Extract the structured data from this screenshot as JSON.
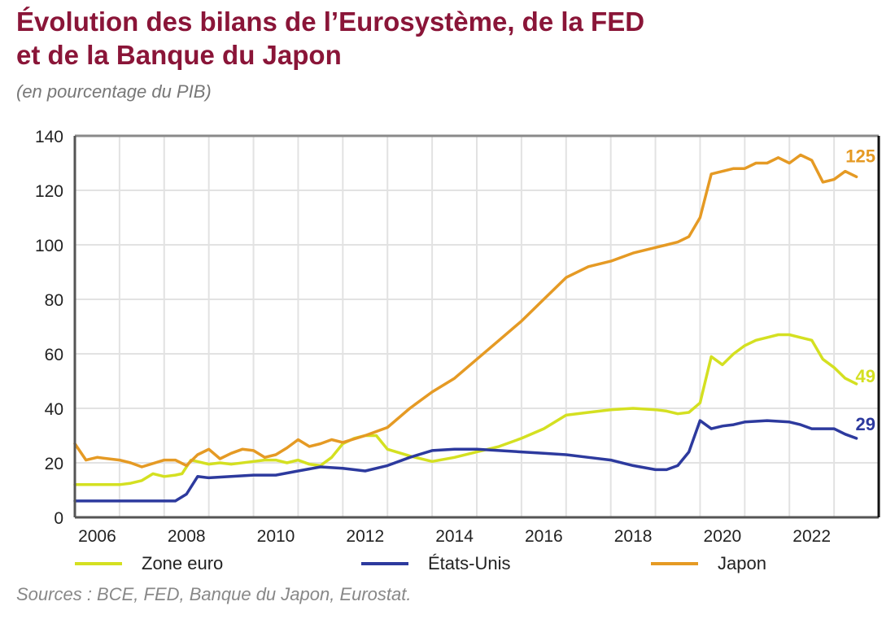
{
  "chart_data": {
    "type": "line",
    "title_line1": "Évolution des bilans de l’Eurosystème, de la FED",
    "title_line2": "et de la Banque du Japon",
    "subtitle": "(en pourcentage du PIB)",
    "xlabel": "",
    "ylabel": "",
    "xlim": [
      2006,
      2024
    ],
    "ylim": [
      0,
      140
    ],
    "y_ticks": [
      "0",
      "20",
      "40",
      "60",
      "80",
      "100",
      "120",
      "140"
    ],
    "x_ticks": [
      "2006",
      "2008",
      "2010",
      "2012",
      "2014",
      "2016",
      "2018",
      "2020",
      "2022"
    ],
    "grid": true,
    "legend_position": "bottom",
    "series": [
      {
        "name": "Zone euro",
        "color": "#d4e021",
        "end_label": "49",
        "x": [
          2006.0,
          2006.5,
          2007.0,
          2007.25,
          2007.5,
          2007.75,
          2008.0,
          2008.25,
          2008.4,
          2008.6,
          2009.0,
          2009.25,
          2009.5,
          2010.0,
          2010.25,
          2010.5,
          2010.75,
          2011.0,
          2011.25,
          2011.5,
          2011.75,
          2012.0,
          2012.25,
          2012.5,
          2012.75,
          2013.0,
          2013.5,
          2014.0,
          2014.5,
          2015.0,
          2015.5,
          2016.0,
          2016.5,
          2017.0,
          2017.5,
          2018.0,
          2018.5,
          2019.0,
          2019.25,
          2019.5,
          2019.75,
          2020.0,
          2020.25,
          2020.5,
          2020.75,
          2021.0,
          2021.25,
          2021.5,
          2021.75,
          2022.0,
          2022.25,
          2022.5,
          2022.75,
          2023.0,
          2023.25,
          2023.5
        ],
        "values": [
          12,
          12,
          12,
          12.5,
          13.5,
          16,
          15,
          15.5,
          16,
          21,
          19.5,
          20,
          19.5,
          20.5,
          21,
          21,
          20,
          21,
          19.5,
          19,
          22,
          27,
          29,
          30,
          30,
          25,
          22.5,
          20.5,
          22,
          24,
          26,
          29,
          32.5,
          37.5,
          38.5,
          39.5,
          40,
          39.5,
          39,
          38,
          38.5,
          42,
          59,
          56,
          60,
          63,
          65,
          66,
          67,
          67,
          66,
          65,
          58,
          55,
          51,
          49
        ]
      },
      {
        "name": "États-Unis",
        "color": "#2d3a9e",
        "end_label": "29",
        "x": [
          2006.0,
          2006.5,
          2007.0,
          2007.5,
          2008.0,
          2008.25,
          2008.5,
          2008.75,
          2009.0,
          2009.5,
          2010.0,
          2010.5,
          2011.0,
          2011.5,
          2012.0,
          2012.5,
          2013.0,
          2013.5,
          2014.0,
          2014.5,
          2015.0,
          2015.5,
          2016.0,
          2016.5,
          2017.0,
          2017.5,
          2018.0,
          2018.5,
          2019.0,
          2019.25,
          2019.5,
          2019.75,
          2020.0,
          2020.25,
          2020.5,
          2020.75,
          2021.0,
          2021.5,
          2022.0,
          2022.25,
          2022.5,
          2022.75,
          2023.0,
          2023.25,
          2023.5
        ],
        "values": [
          6,
          6,
          6,
          6,
          6,
          6,
          8.5,
          15,
          14.5,
          15,
          15.5,
          15.5,
          17,
          18.5,
          18,
          17,
          19,
          22,
          24.5,
          25,
          25,
          24.5,
          24,
          23.5,
          23,
          22,
          21,
          19,
          17.5,
          17.5,
          19,
          24,
          35.5,
          32.5,
          33.5,
          34,
          35,
          35.5,
          35,
          34,
          32.5,
          32.5,
          32.5,
          30.5,
          29
        ]
      },
      {
        "name": "Japon",
        "color": "#e59a24",
        "end_label": "125",
        "x": [
          2006.0,
          2006.25,
          2006.5,
          2007.0,
          2007.25,
          2007.5,
          2008.0,
          2008.25,
          2008.5,
          2008.75,
          2009.0,
          2009.25,
          2009.5,
          2009.75,
          2010.0,
          2010.25,
          2010.5,
          2010.75,
          2011.0,
          2011.25,
          2011.5,
          2011.75,
          2012.0,
          2012.5,
          2013.0,
          2013.5,
          2014.0,
          2014.5,
          2015.0,
          2015.5,
          2016.0,
          2016.5,
          2017.0,
          2017.5,
          2018.0,
          2018.5,
          2019.0,
          2019.25,
          2019.5,
          2019.75,
          2020.0,
          2020.25,
          2020.5,
          2020.75,
          2021.0,
          2021.25,
          2021.5,
          2021.75,
          2022.0,
          2022.25,
          2022.5,
          2022.75,
          2023.0,
          2023.25,
          2023.5
        ],
        "values": [
          27,
          21,
          22,
          21,
          20,
          18.5,
          21,
          21,
          19,
          23,
          25,
          21.5,
          23.5,
          25,
          24.5,
          22,
          23,
          25.5,
          28.5,
          26,
          27,
          28.5,
          27.5,
          30,
          33,
          40,
          46,
          51,
          58,
          65,
          72,
          80,
          88,
          92,
          94,
          97,
          99,
          100,
          101,
          103,
          110,
          126,
          127,
          128,
          128,
          130,
          130,
          132,
          130,
          133,
          131,
          123,
          124,
          127,
          125
        ]
      }
    ]
  },
  "legend": {
    "items": [
      "Zone euro",
      "États-Unis",
      "Japon"
    ]
  },
  "source": "Sources : BCE, FED, Banque du Japon, Eurostat."
}
